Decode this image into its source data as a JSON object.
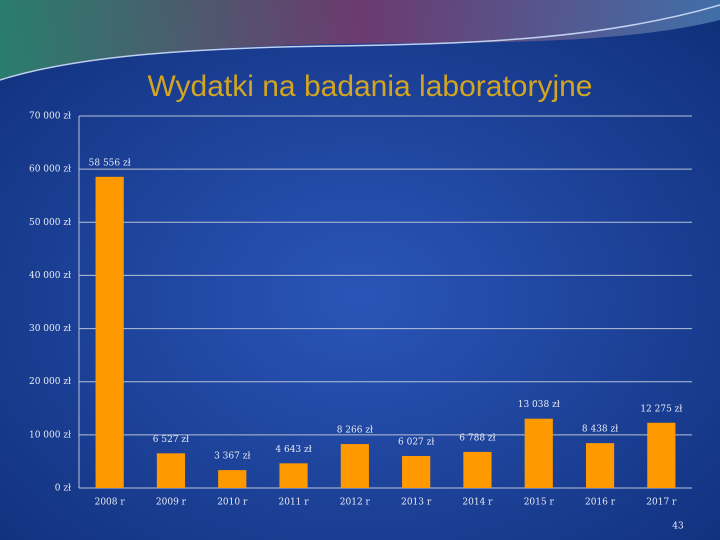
{
  "chart_data": {
    "type": "bar",
    "title": "Wydatki na badania laboratoryjne",
    "categories": [
      "2008 r",
      "2009 r",
      "2010 r",
      "2011 r",
      "2012 r",
      "2013 r",
      "2014 r",
      "2015 r",
      "2016 r",
      "2017 r"
    ],
    "values": [
      58556,
      6527,
      3367,
      4643,
      8266,
      6027,
      6788,
      13038,
      8438,
      12275
    ],
    "value_labels": [
      "58 556 zł",
      "6 527 zł",
      "3 367 zł",
      "4 643 zł",
      "8 266 zł",
      "6 027 zł",
      "6 788 zł",
      "13 038 zł",
      "8 438 zł",
      "12 275 zł"
    ],
    "color": "#ff9900",
    "ylim": [
      0,
      70000
    ],
    "yticks": [
      {
        "value": 0,
        "label": "0 zł"
      },
      {
        "value": 10000,
        "label": "10 000 zł"
      },
      {
        "value": 20000,
        "label": "20 000 zł"
      },
      {
        "value": 30000,
        "label": "30 000 zł"
      },
      {
        "value": 40000,
        "label": "40 000 zł"
      },
      {
        "value": 50000,
        "label": "50 000 zł"
      },
      {
        "value": 60000,
        "label": "60 000 zł"
      },
      {
        "value": 70000,
        "label": "70 000 zł"
      }
    ],
    "grid": true
  },
  "slide_number": "43"
}
